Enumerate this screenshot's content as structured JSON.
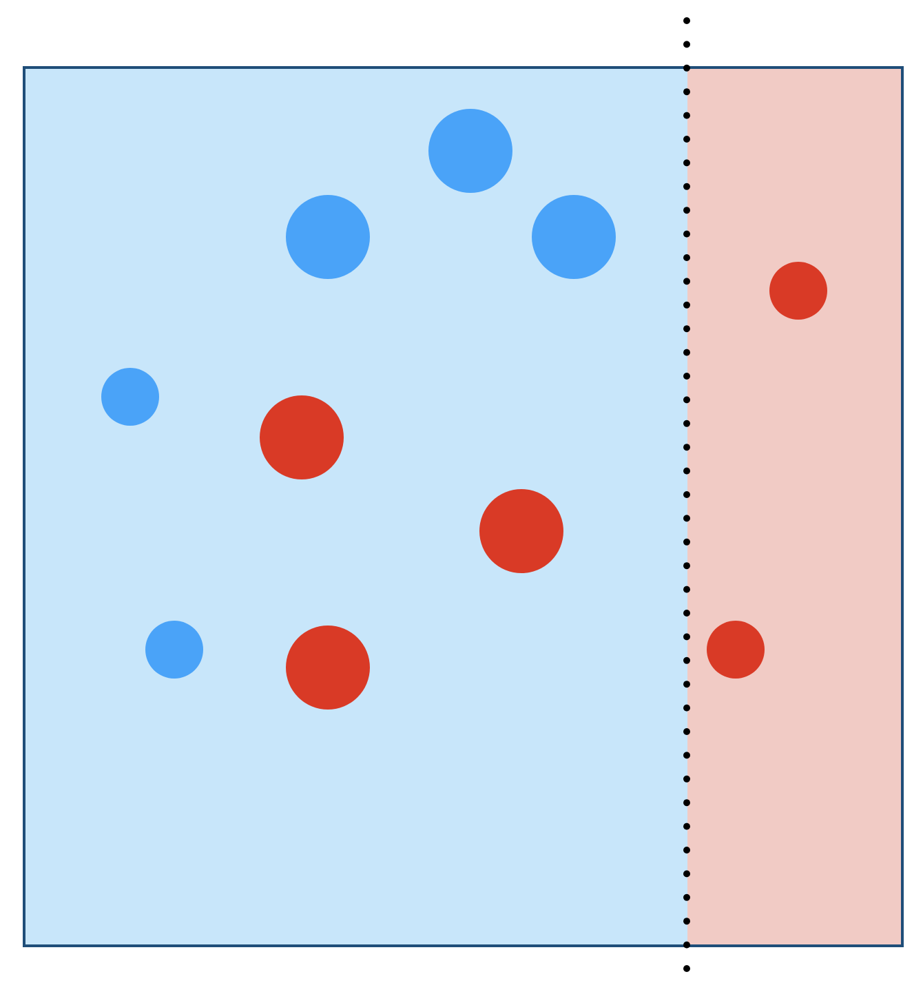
{
  "colors": {
    "background": "#ffffff",
    "frame_border": "#1f4e79",
    "region_left_fill": "#c8e6fa",
    "region_right_fill": "#f1cbc5",
    "point_blue": "#4aa3f8",
    "point_red": "#d93a26",
    "boundary_line": "#000000"
  },
  "regions": [
    {
      "name": "left-region",
      "class_color": "blue"
    },
    {
      "name": "right-region",
      "class_color": "red"
    }
  ],
  "points": [
    {
      "name": "blue-point-large-top",
      "class": "blue",
      "size": "large"
    },
    {
      "name": "blue-point-large-upper-left",
      "class": "blue",
      "size": "large"
    },
    {
      "name": "blue-point-large-upper-right",
      "class": "blue",
      "size": "large"
    },
    {
      "name": "blue-point-small-middle-left",
      "class": "blue",
      "size": "small"
    },
    {
      "name": "blue-point-small-lower-left",
      "class": "blue",
      "size": "small"
    },
    {
      "name": "red-point-large-center-left",
      "class": "red",
      "size": "large"
    },
    {
      "name": "red-point-large-center-right",
      "class": "red",
      "size": "large"
    },
    {
      "name": "red-point-large-lower",
      "class": "red",
      "size": "large"
    },
    {
      "name": "red-point-small-right-upper",
      "class": "red",
      "size": "small"
    },
    {
      "name": "red-point-small-right-lower",
      "class": "red",
      "size": "small"
    }
  ],
  "boundary": {
    "style": "dotted",
    "orientation": "vertical"
  }
}
